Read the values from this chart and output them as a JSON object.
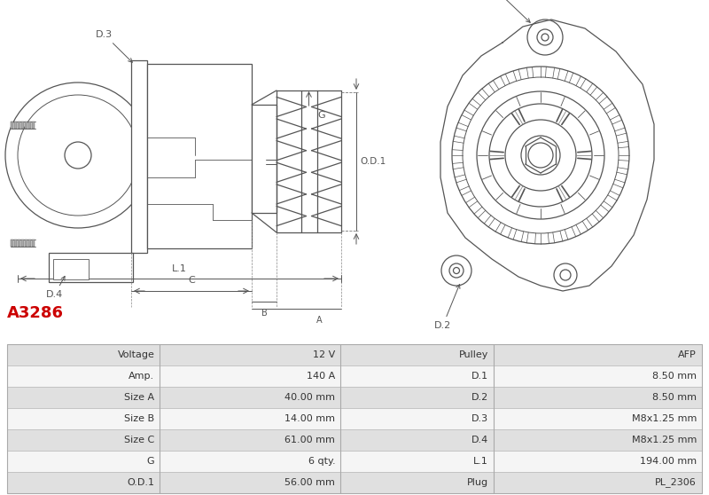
{
  "title": "A3286",
  "title_color": "#cc0000",
  "bg_color": "#ffffff",
  "line_color": "#555555",
  "table_rows": [
    [
      "Voltage",
      "12 V",
      "Pulley",
      "AFP"
    ],
    [
      "Amp.",
      "140 A",
      "D.1",
      "8.50 mm"
    ],
    [
      "Size A",
      "40.00 mm",
      "D.2",
      "8.50 mm"
    ],
    [
      "Size B",
      "14.00 mm",
      "D.3",
      "M8x1.25 mm"
    ],
    [
      "Size C",
      "61.00 mm",
      "D.4",
      "M8x1.25 mm"
    ],
    [
      "G",
      "6 qty.",
      "L.1",
      "194.00 mm"
    ],
    [
      "O.D.1",
      "56.00 mm",
      "Plug",
      "PL_2306"
    ]
  ],
  "col_header_bg": "#e0e0e0",
  "col_data_bg": "#f5f5f5"
}
